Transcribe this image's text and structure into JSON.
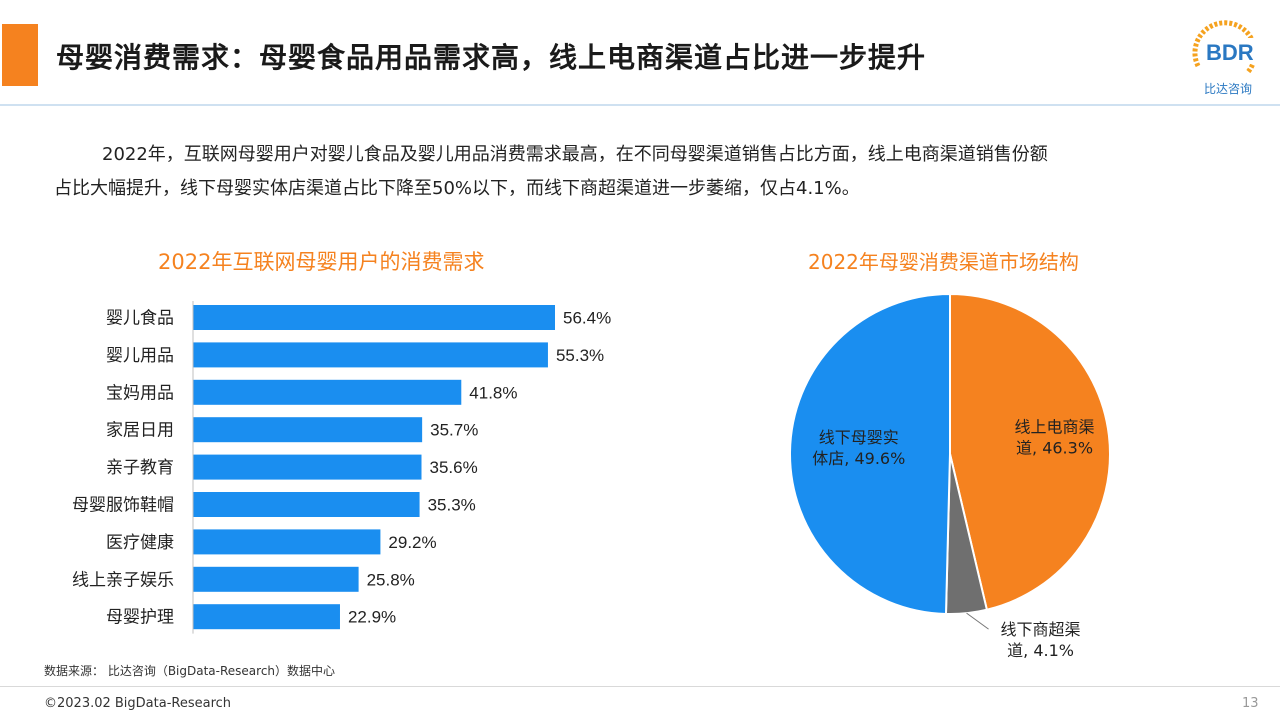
{
  "header": {
    "title": "母婴消费需求：母婴食品用品需求高，线上电商渠道占比进一步提升",
    "logo_text": "比达咨询",
    "logo_letters": "BDR"
  },
  "intro": {
    "line1": "2022年，互联网母婴用户对婴儿食品及婴儿用品消费需求最高，在不同母婴渠道销售占比方面，线上电商渠道销售份额",
    "line2": "占比大幅提升，线下母婴实体店渠道占比下降至50%以下，而线下商超渠道进一步萎缩，仅占4.1%。"
  },
  "colors": {
    "accent": "#f5821f",
    "bar": "#1a8ef0",
    "pie_offline_store": "#1a8ef0",
    "pie_online": "#f5821f",
    "pie_supermarket": "#6f6f6f"
  },
  "chart_data": [
    {
      "type": "bar",
      "orientation": "horizontal",
      "title": "2022年互联网母婴用户的消费需求",
      "categories": [
        "婴儿食品",
        "婴儿用品",
        "宝妈用品",
        "家居日用",
        "亲子教育",
        "母婴服饰鞋帽",
        "医疗健康",
        "线上亲子娱乐",
        "母婴护理"
      ],
      "values": [
        56.4,
        55.3,
        41.8,
        35.7,
        35.6,
        35.3,
        29.2,
        25.8,
        22.9
      ],
      "value_labels": [
        "56.4%",
        "55.3%",
        "41.8%",
        "35.7%",
        "35.6%",
        "35.3%",
        "29.2%",
        "25.8%",
        "22.9%"
      ],
      "xlim": [
        0,
        60
      ],
      "grid": false,
      "legend": "none"
    },
    {
      "type": "pie",
      "title": "2022年母婴消费渠道市场结构",
      "slices": [
        {
          "label": "线上电商渠道, 46.3%",
          "label_lines": [
            "线上电商渠",
            "道, 46.3%"
          ],
          "value": 46.3
        },
        {
          "label": "线下商超渠道, 4.1%",
          "label_lines": [
            "线下商超渠",
            "道, 4.1%"
          ],
          "value": 4.1
        },
        {
          "label": "线下母婴实体店, 49.6%",
          "label_lines": [
            "线下母婴实",
            "体店, 49.6%"
          ],
          "value": 49.6
        }
      ],
      "legend": "none"
    }
  ],
  "footer": {
    "source": "数据来源： 比达咨询（BigData-Research）数据中心",
    "copyright": "©2023.02 BigData-Research",
    "page_number": "13"
  }
}
